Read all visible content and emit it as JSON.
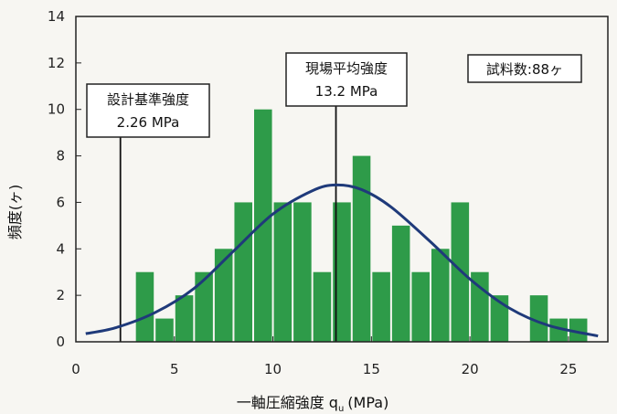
{
  "chart_data": {
    "type": "bar",
    "xlabel": "一軸圧縮強度 q",
    "xlabel_sub": "u",
    "xlabel_unit": "(MPa)",
    "ylabel": "頻度(ヶ)",
    "xlim": [
      0,
      27
    ],
    "ylim": [
      0,
      14
    ],
    "x_ticks": [
      0,
      5,
      10,
      15,
      20,
      25
    ],
    "y_ticks": [
      0,
      2,
      4,
      6,
      8,
      10,
      12,
      14
    ],
    "bin_width": 1,
    "bins": [
      {
        "x": 3.5,
        "value": 3
      },
      {
        "x": 4.5,
        "value": 1
      },
      {
        "x": 5.5,
        "value": 2
      },
      {
        "x": 6.5,
        "value": 3
      },
      {
        "x": 7.5,
        "value": 4
      },
      {
        "x": 8.5,
        "value": 6
      },
      {
        "x": 9.5,
        "value": 10
      },
      {
        "x": 10.5,
        "value": 6
      },
      {
        "x": 11.5,
        "value": 6
      },
      {
        "x": 12.5,
        "value": 3
      },
      {
        "x": 13.5,
        "value": 6
      },
      {
        "x": 14.5,
        "value": 8
      },
      {
        "x": 15.5,
        "value": 3
      },
      {
        "x": 16.5,
        "value": 5
      },
      {
        "x": 17.5,
        "value": 3
      },
      {
        "x": 18.5,
        "value": 4
      },
      {
        "x": 19.5,
        "value": 6
      },
      {
        "x": 20.5,
        "value": 3
      },
      {
        "x": 21.5,
        "value": 2
      },
      {
        "x": 23.5,
        "value": 2
      },
      {
        "x": 24.5,
        "value": 1
      },
      {
        "x": 25.5,
        "value": 1
      }
    ],
    "curve": [
      {
        "x": 0.5,
        "y": 0.35
      },
      {
        "x": 2,
        "y": 0.6
      },
      {
        "x": 4,
        "y": 1.25
      },
      {
        "x": 6,
        "y": 2.3
      },
      {
        "x": 8,
        "y": 3.9
      },
      {
        "x": 10,
        "y": 5.5
      },
      {
        "x": 12,
        "y": 6.5
      },
      {
        "x": 13.2,
        "y": 6.75
      },
      {
        "x": 14.5,
        "y": 6.55
      },
      {
        "x": 16,
        "y": 5.8
      },
      {
        "x": 18,
        "y": 4.3
      },
      {
        "x": 20,
        "y": 2.7
      },
      {
        "x": 22,
        "y": 1.45
      },
      {
        "x": 24,
        "y": 0.7
      },
      {
        "x": 26.5,
        "y": 0.25
      }
    ],
    "reference_lines": [
      {
        "x": 2.26,
        "label": "設計基準強度",
        "value_label": "2.26 MPa"
      },
      {
        "x": 13.2,
        "label": "現場平均強度",
        "value_label": "13.2 MPa"
      }
    ],
    "annotation": "試料数:88ヶ",
    "bar_color": "#2e9b49",
    "curve_color": "#1f3a7a"
  }
}
